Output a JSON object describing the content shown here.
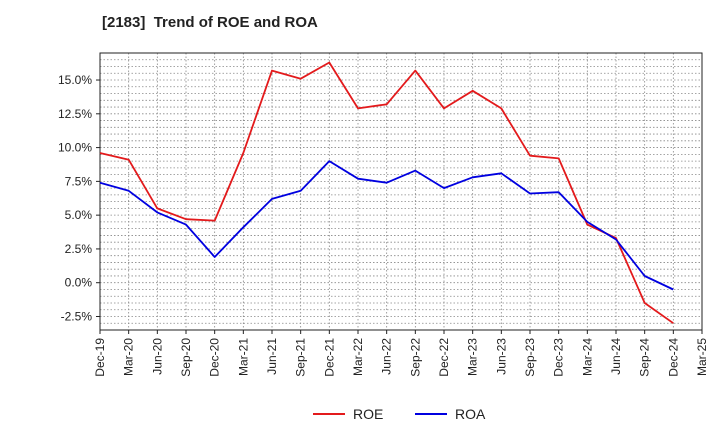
{
  "chart_data": {
    "type": "line",
    "title": "[2183]  Trend of ROE and ROA",
    "x_tick_labels": [
      "Dec-19",
      "Mar-20",
      "Jun-20",
      "Sep-20",
      "Dec-20",
      "Mar-21",
      "Jun-21",
      "Sep-21",
      "Dec-21",
      "Mar-22",
      "Jun-22",
      "Sep-22",
      "Dec-22",
      "Mar-23",
      "Jun-23",
      "Sep-23",
      "Dec-23",
      "Mar-24",
      "Jun-24",
      "Sep-24",
      "Dec-24",
      "Mar-25"
    ],
    "x": [
      "Dec-19",
      "Mar-20",
      "Jun-20",
      "Sep-20",
      "Dec-20",
      "Mar-21",
      "Jun-21",
      "Sep-21",
      "Dec-21",
      "Mar-22",
      "Jun-22",
      "Sep-22",
      "Dec-22",
      "Mar-23",
      "Jun-23",
      "Sep-23",
      "Dec-23",
      "Mar-24",
      "Jun-24",
      "Sep-24",
      "Dec-24"
    ],
    "y_ticks": [
      -2.5,
      0.0,
      2.5,
      5.0,
      7.5,
      10.0,
      12.5,
      15.0
    ],
    "y_tick_labels": [
      "-2.5%",
      "0.0%",
      "2.5%",
      "5.0%",
      "7.5%",
      "10.0%",
      "12.5%",
      "15.0%"
    ],
    "ylim": [
      -3.5,
      17.0
    ],
    "grid": true,
    "legend_position": "bottom-center",
    "series": [
      {
        "name": "ROE",
        "color": "#e31a1c",
        "values": [
          9.6,
          9.1,
          5.5,
          4.7,
          4.6,
          9.6,
          15.7,
          15.1,
          16.3,
          12.9,
          13.2,
          15.7,
          12.9,
          14.2,
          12.9,
          9.4,
          9.2,
          4.3,
          3.3,
          -1.5,
          -3.0
        ]
      },
      {
        "name": "ROA",
        "color": "#0000e0",
        "values": [
          7.4,
          6.8,
          5.2,
          4.3,
          1.9,
          4.1,
          6.2,
          6.8,
          9.0,
          7.7,
          7.4,
          8.3,
          7.0,
          7.8,
          8.1,
          6.6,
          6.7,
          4.5,
          3.2,
          0.5,
          -0.5
        ]
      }
    ]
  }
}
